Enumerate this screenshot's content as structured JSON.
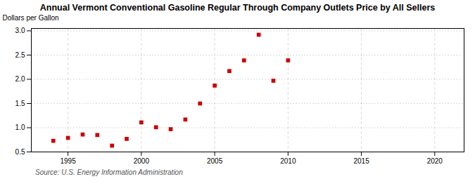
{
  "chart_data": {
    "type": "scatter",
    "title": "Annual Vermont Conventional Gasoline Regular Through Company Outlets Price by All Sellers",
    "ylabel": "Dollars per Gallon",
    "source": "Source: U.S. Energy Information Administration",
    "x": [
      1994,
      1995,
      1996,
      1997,
      1998,
      1999,
      2000,
      2001,
      2002,
      2003,
      2004,
      2005,
      2006,
      2007,
      2008,
      2009,
      2010
    ],
    "values": [
      0.73,
      0.79,
      0.86,
      0.85,
      0.63,
      0.77,
      1.11,
      1.01,
      0.97,
      1.17,
      1.5,
      1.87,
      2.17,
      2.39,
      2.92,
      1.97,
      2.39
    ],
    "color": "#cc0000",
    "marker": "square",
    "xlim": [
      1992.5,
      2022
    ],
    "ylim": [
      0.5,
      3.05
    ],
    "xticks": [
      1995,
      2000,
      2005,
      2010,
      2015,
      2020
    ],
    "yticks": [
      0.5,
      {
        "value": 1.0,
        "label": "1.0"
      },
      1.5,
      {
        "value": 2.0,
        "label": "2.0"
      },
      2.5,
      {
        "value": 3.0,
        "label": "3.0"
      }
    ],
    "grid": true
  }
}
